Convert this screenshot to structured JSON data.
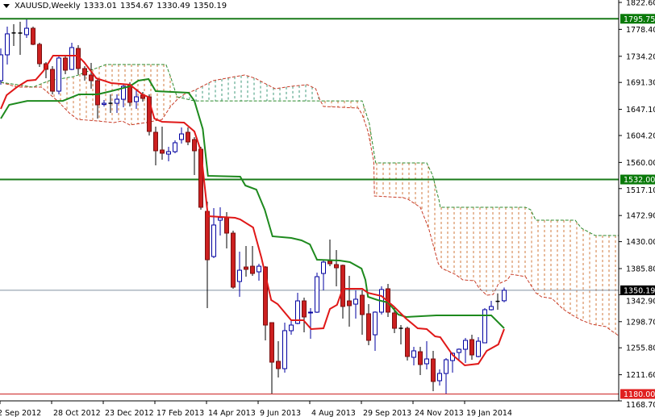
{
  "header": {
    "symbol": "XAUUSD,Weekly",
    "open": "1333.01",
    "high": "1354.67",
    "low": "1330.49",
    "close": "1350.19"
  },
  "colors": {
    "up_candle": "#0000a0",
    "down_candle": "#cc2020",
    "tenkan": "#e01818",
    "kijun": "#1e8a1e",
    "span_a": "#c83c28",
    "span_b": "#2e8b2e",
    "cloud_bearish": "#d2783c",
    "cloud_bullish": "#3c9a7a",
    "level_green": "#1a7a1a",
    "level_red": "#cc2020",
    "price_line": "#8090a0"
  },
  "chart_data": {
    "type": "candlestick",
    "title": "XAUUSD,Weekly",
    "ylim": [
      1168.7,
      1822.6
    ],
    "grid": false,
    "y_ticks": [
      "1822.60",
      "1778.40",
      "1734.20",
      "1691.30",
      "1647.10",
      "1604.20",
      "1560.00",
      "1517.10",
      "1472.90",
      "1430.00",
      "1385.80",
      "1342.90",
      "1298.70",
      "1255.80",
      "1211.60",
      "1168.70"
    ],
    "x_ticks": [
      "2 Sep 2012",
      "28 Oct 2012",
      "23 Dec 2012",
      "17 Feb 2013",
      "14 Apr 2013",
      "9 Jun 2013",
      "4 Aug 2013",
      "29 Sep 2013",
      "24 Nov 2013",
      "19 Jan 2014"
    ],
    "x_tick_interval_weeks": 8,
    "ohlc_fields": [
      "open",
      "high",
      "low",
      "close"
    ],
    "candles": [
      [
        1694.2,
        1747.1,
        1687.6,
        1736.6
      ],
      [
        1736.6,
        1782.9,
        1720.7,
        1771.0
      ],
      [
        1772.5,
        1786.9,
        1751.1,
        1772.5
      ],
      [
        1772.3,
        1790.8,
        1736.6,
        1772.3
      ],
      [
        1769.7,
        1794.8,
        1764.4,
        1780.2
      ],
      [
        1780.2,
        1782.9,
        1752.4,
        1753.8
      ],
      [
        1753.8,
        1756.4,
        1716.7,
        1722.0
      ],
      [
        1722.0,
        1724.6,
        1698.2,
        1712.7
      ],
      [
        1712.7,
        1718.0,
        1671.7,
        1677.0
      ],
      [
        1677.0,
        1733.9,
        1671.7,
        1731.3
      ],
      [
        1731.3,
        1736.6,
        1704.8,
        1711.4
      ],
      [
        1712.7,
        1756.4,
        1711.4,
        1748.5
      ],
      [
        1747.1,
        1752.4,
        1704.8,
        1714.1
      ],
      [
        1714.1,
        1718.0,
        1694.2,
        1703.5
      ],
      [
        1703.5,
        1723.3,
        1681.0,
        1694.2
      ],
      [
        1694.2,
        1698.2,
        1632.0,
        1654.5
      ],
      [
        1655.3,
        1662.4,
        1651.8,
        1657.1
      ],
      [
        1657.1,
        1671.7,
        1641.3,
        1657.1
      ],
      [
        1657.1,
        1671.7,
        1641.3,
        1663.7
      ],
      [
        1663.7,
        1687.6,
        1650.5,
        1684.9
      ],
      [
        1687.6,
        1691.6,
        1651.8,
        1658.5
      ],
      [
        1659.8,
        1681.0,
        1647.9,
        1667.7
      ],
      [
        1670.4,
        1675.7,
        1659.8,
        1665.1
      ],
      [
        1667.7,
        1671.7,
        1604.2,
        1610.8
      ],
      [
        1609.5,
        1618.8,
        1555.2,
        1579.1
      ],
      [
        1580.4,
        1618.8,
        1564.5,
        1575.1
      ],
      [
        1573.7,
        1585.7,
        1561.8,
        1577.7
      ],
      [
        1577.7,
        1596.2,
        1575.1,
        1592.3
      ],
      [
        1597.6,
        1617.4,
        1591.0,
        1606.8
      ],
      [
        1609.5,
        1617.4,
        1588.3,
        1593.6
      ],
      [
        1597.6,
        1601.6,
        1539.3,
        1579.1
      ],
      [
        1581.7,
        1585.7,
        1482.4,
        1486.4
      ],
      [
        1479.7,
        1495.7,
        1320.9,
        1400.3
      ],
      [
        1405.6,
        1485.0,
        1403.0,
        1457.3
      ],
      [
        1465.2,
        1486.4,
        1440.0,
        1469.2
      ],
      [
        1469.2,
        1478.4,
        1418.9,
        1444.0
      ],
      [
        1444.0,
        1448.0,
        1352.7,
        1355.3
      ],
      [
        1364.6,
        1413.6,
        1339.4,
        1383.1
      ],
      [
        1388.4,
        1422.8,
        1372.5,
        1384.5
      ],
      [
        1389.7,
        1422.8,
        1373.9,
        1377.8
      ],
      [
        1380.5,
        1393.7,
        1366.0,
        1389.7
      ],
      [
        1388.4,
        1389.7,
        1268.0,
        1293.1
      ],
      [
        1297.1,
        1297.1,
        1180.6,
        1232.2
      ],
      [
        1233.6,
        1266.6,
        1207.1,
        1221.6
      ],
      [
        1221.6,
        1297.1,
        1215.0,
        1283.9
      ],
      [
        1283.9,
        1299.7,
        1277.2,
        1293.1
      ],
      [
        1295.8,
        1346.0,
        1294.5,
        1332.8
      ],
      [
        1332.8,
        1338.1,
        1281.2,
        1306.4
      ],
      [
        1313.0,
        1320.9,
        1270.6,
        1314.3
      ],
      [
        1314.3,
        1379.2,
        1313.0,
        1372.5
      ],
      [
        1377.8,
        1400.3,
        1350.0,
        1396.4
      ],
      [
        1397.7,
        1433.4,
        1389.7,
        1393.7
      ],
      [
        1392.4,
        1416.2,
        1356.7,
        1387.1
      ],
      [
        1391.1,
        1392.4,
        1303.7,
        1323.6
      ],
      [
        1332.8,
        1373.9,
        1290.5,
        1324.9
      ],
      [
        1327.5,
        1350.0,
        1303.7,
        1335.5
      ],
      [
        1342.1,
        1350.0,
        1277.2,
        1310.3
      ],
      [
        1311.7,
        1327.5,
        1260.0,
        1268.0
      ],
      [
        1277.2,
        1315.6,
        1250.8,
        1314.3
      ],
      [
        1314.3,
        1356.7,
        1310.3,
        1351.4
      ],
      [
        1352.7,
        1360.6,
        1306.4,
        1314.3
      ],
      [
        1313.0,
        1323.6,
        1279.9,
        1287.8
      ],
      [
        1287.8,
        1293.1,
        1261.3,
        1287.8
      ],
      [
        1287.8,
        1290.5,
        1234.9,
        1241.5
      ],
      [
        1240.2,
        1257.4,
        1226.9,
        1250.8
      ],
      [
        1249.4,
        1257.4,
        1211.1,
        1228.3
      ],
      [
        1229.6,
        1266.6,
        1220.3,
        1237.5
      ],
      [
        1237.5,
        1250.8,
        1184.6,
        1200.5
      ],
      [
        1201.8,
        1220.3,
        1193.9,
        1213.7
      ],
      [
        1213.7,
        1238.8,
        1180.6,
        1236.2
      ],
      [
        1234.9,
        1248.1,
        1215.0,
        1246.8
      ],
      [
        1248.1,
        1254.7,
        1234.9,
        1253.4
      ],
      [
        1253.4,
        1271.9,
        1230.9,
        1268.0
      ],
      [
        1269.3,
        1277.2,
        1236.2,
        1244.1
      ],
      [
        1241.5,
        1273.3,
        1240.2,
        1266.6
      ],
      [
        1264.0,
        1320.9,
        1264.0,
        1318.3
      ],
      [
        1318.3,
        1332.8,
        1316.9,
        1323.6
      ],
      [
        1332.0,
        1345.0,
        1318.3,
        1332.0
      ],
      [
        1333.01,
        1354.67,
        1330.49,
        1350.19
      ]
    ],
    "indicator_x_unit": "bar index (weeks from 2 Sep 2012)",
    "tenkan": [
      [
        0,
        1647.9
      ],
      [
        0.9,
        1670.4
      ],
      [
        2.5,
        1683.6
      ],
      [
        4.1,
        1694.2
      ],
      [
        5.4,
        1695.5
      ],
      [
        6.6,
        1710.1
      ],
      [
        8.1,
        1735.2
      ],
      [
        11.9,
        1735.2
      ],
      [
        12.9,
        1724.6
      ],
      [
        14.8,
        1698.2
      ],
      [
        17.1,
        1690.2
      ],
      [
        20,
        1687.6
      ],
      [
        21.9,
        1671.7
      ],
      [
        22.8,
        1667.7
      ],
      [
        23.8,
        1632.0
      ],
      [
        25,
        1626.7
      ],
      [
        28.4,
        1625.4
      ],
      [
        30,
        1610.8
      ],
      [
        31,
        1579.1
      ],
      [
        32.1,
        1471.8
      ],
      [
        36.3,
        1469.2
      ],
      [
        37.1,
        1466.5
      ],
      [
        39.1,
        1453.3
      ],
      [
        40.4,
        1403.0
      ],
      [
        41.9,
        1334.2
      ],
      [
        42.9,
        1327.5
      ],
      [
        45,
        1301.1
      ],
      [
        46.9,
        1301.1
      ],
      [
        48.1,
        1286.5
      ],
      [
        50,
        1287.8
      ],
      [
        51,
        1319.6
      ],
      [
        52.1,
        1326.2
      ],
      [
        52.9,
        1350.0
      ],
      [
        53.4,
        1352.7
      ],
      [
        56,
        1352.7
      ],
      [
        56.9,
        1346.0
      ],
      [
        59,
        1340.8
      ],
      [
        60.9,
        1323.6
      ],
      [
        62.8,
        1303.7
      ],
      [
        64.6,
        1287.8
      ],
      [
        66,
        1286.5
      ],
      [
        67.3,
        1274.6
      ],
      [
        68.1,
        1273.3
      ],
      [
        70,
        1244.1
      ],
      [
        71.9,
        1226.9
      ],
      [
        74,
        1229.6
      ],
      [
        75.3,
        1250.8
      ],
      [
        77.1,
        1261.4
      ],
      [
        78,
        1286.5
      ]
    ],
    "kijun": [
      [
        0,
        1632.0
      ],
      [
        1.3,
        1654.5
      ],
      [
        4.1,
        1661.0
      ],
      [
        9.6,
        1661.0
      ],
      [
        12.1,
        1671.7
      ],
      [
        15,
        1671.7
      ],
      [
        17.1,
        1677.0
      ],
      [
        20,
        1684.9
      ],
      [
        21.3,
        1694.2
      ],
      [
        22.9,
        1696.8
      ],
      [
        24,
        1677.0
      ],
      [
        29.1,
        1674.3
      ],
      [
        30,
        1661.0
      ],
      [
        31.3,
        1614.8
      ],
      [
        32.1,
        1538.0
      ],
      [
        37.1,
        1536.7
      ],
      [
        37.9,
        1522.1
      ],
      [
        39.6,
        1515.5
      ],
      [
        40.9,
        1482.4
      ],
      [
        42.1,
        1438.7
      ],
      [
        45,
        1436.1
      ],
      [
        46.6,
        1432.1
      ],
      [
        47.9,
        1425.5
      ],
      [
        49,
        1400.3
      ],
      [
        52.5,
        1399.0
      ],
      [
        54.1,
        1396.4
      ],
      [
        55.9,
        1385.8
      ],
      [
        56.5,
        1367.2
      ],
      [
        56.9,
        1339.4
      ],
      [
        58.4,
        1334.2
      ],
      [
        60,
        1330.2
      ],
      [
        61.6,
        1310.3
      ],
      [
        62.8,
        1306.4
      ],
      [
        67.5,
        1309.0
      ],
      [
        76,
        1309.0
      ],
      [
        78,
        1287.8
      ]
    ],
    "senkou_a": [
      [
        0,
        1691.6
      ],
      [
        2.5,
        1683.6
      ],
      [
        6.3,
        1683.6
      ],
      [
        8.8,
        1661.0
      ],
      [
        10.6,
        1641.3
      ],
      [
        11.9,
        1630.7
      ],
      [
        15,
        1628.0
      ],
      [
        17.5,
        1625.4
      ],
      [
        18.8,
        1628.0
      ],
      [
        20,
        1621.4
      ],
      [
        22.5,
        1625.4
      ],
      [
        25,
        1630.7
      ],
      [
        26.3,
        1651.8
      ],
      [
        27.5,
        1665.1
      ],
      [
        28.4,
        1671.7
      ],
      [
        30,
        1678.3
      ],
      [
        32.9,
        1694.2
      ],
      [
        36.3,
        1700.8
      ],
      [
        37.8,
        1703.5
      ],
      [
        39.4,
        1698.2
      ],
      [
        41.3,
        1687.6
      ],
      [
        42.5,
        1681.0
      ],
      [
        45,
        1684.9
      ],
      [
        47.5,
        1687.6
      ],
      [
        48.8,
        1681.0
      ],
      [
        49.4,
        1663.8
      ],
      [
        50,
        1651.8
      ],
      [
        55.4,
        1649.2
      ],
      [
        56,
        1638.6
      ],
      [
        56.9,
        1610.8
      ],
      [
        57.8,
        1561.8
      ],
      [
        57.9,
        1504.9
      ],
      [
        62.3,
        1502.3
      ],
      [
        63.1,
        1499.6
      ],
      [
        65,
        1486.4
      ],
      [
        66.3,
        1452.0
      ],
      [
        67.8,
        1393.7
      ],
      [
        68.4,
        1385.8
      ],
      [
        70.4,
        1376.5
      ],
      [
        71.6,
        1367.2
      ],
      [
        73.4,
        1365.9
      ],
      [
        74.1,
        1354.0
      ],
      [
        75.3,
        1342.1
      ],
      [
        76.3,
        1343.4
      ],
      [
        77.1,
        1360.6
      ],
      [
        78.5,
        1367.2
      ],
      [
        79.1,
        1376.5
      ],
      [
        81.3,
        1372.5
      ],
      [
        82.9,
        1346.0
      ],
      [
        83.8,
        1339.4
      ],
      [
        85.4,
        1336.8
      ],
      [
        87.1,
        1319.6
      ],
      [
        88.4,
        1310.3
      ],
      [
        90,
        1301.1
      ],
      [
        91.6,
        1294.5
      ],
      [
        93.8,
        1290.5
      ],
      [
        94.6,
        1283.9
      ],
      [
        95.9,
        1274.6
      ]
    ],
    "senkou_b": [
      [
        0,
        1691.6
      ],
      [
        5,
        1683.6
      ],
      [
        7.5,
        1694.2
      ],
      [
        11.3,
        1700.8
      ],
      [
        16.3,
        1720.7
      ],
      [
        25.6,
        1720.7
      ],
      [
        26.3,
        1700.8
      ],
      [
        27.3,
        1667.7
      ],
      [
        30,
        1661.0
      ],
      [
        56,
        1661.0
      ],
      [
        57.1,
        1624.1
      ],
      [
        57.9,
        1571.1
      ],
      [
        58.1,
        1559.2
      ],
      [
        66,
        1559.2
      ],
      [
        66.9,
        1539.3
      ],
      [
        67.9,
        1498.3
      ],
      [
        68.1,
        1486.4
      ],
      [
        81.3,
        1486.4
      ],
      [
        82.1,
        1482.4
      ],
      [
        82.9,
        1465.2
      ],
      [
        89,
        1465.2
      ],
      [
        90,
        1452.0
      ],
      [
        92.1,
        1440.0
      ],
      [
        95.9,
        1440.0
      ]
    ],
    "levels": [
      {
        "price": 1795.75,
        "label": "1795.75",
        "color": "#1a7a1a"
      },
      {
        "price": 1532.0,
        "label": "1532.00",
        "color": "#1a7a1a"
      },
      {
        "price": 1180.0,
        "label": "1180.00",
        "color": "#cc2020"
      }
    ],
    "current_price": {
      "price": 1350.19,
      "label": "1350.19"
    }
  }
}
